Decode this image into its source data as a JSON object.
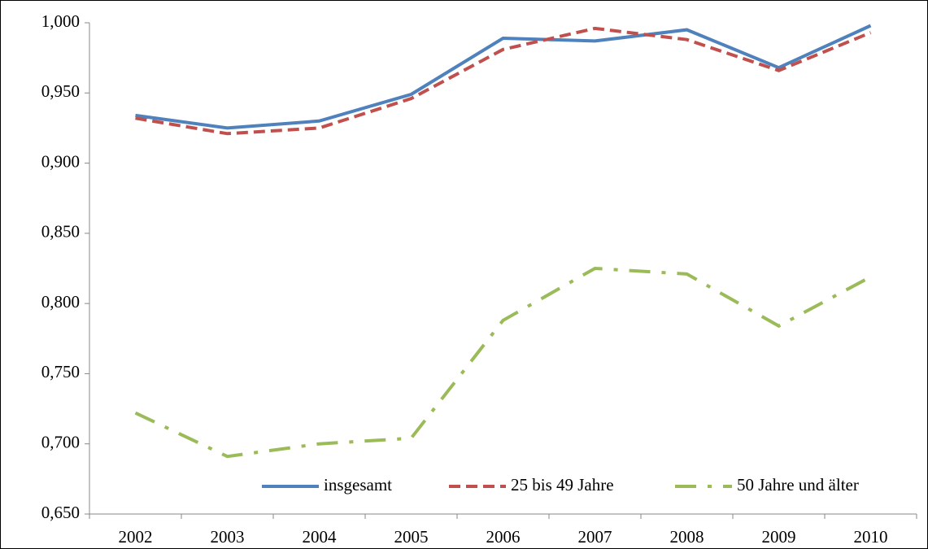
{
  "chart_data": {
    "type": "line",
    "categories": [
      "2002",
      "2003",
      "2004",
      "2005",
      "2006",
      "2007",
      "2008",
      "2009",
      "2010"
    ],
    "series": [
      {
        "name": "insgesamt",
        "color": "#4f81bd",
        "style": "solid",
        "values": [
          0.934,
          0.925,
          0.93,
          0.949,
          0.989,
          0.987,
          0.995,
          0.968,
          0.998
        ]
      },
      {
        "name": "25 bis 49 Jahre",
        "color": "#c0504d",
        "style": "dashed",
        "values": [
          0.932,
          0.921,
          0.925,
          0.946,
          0.981,
          0.996,
          0.988,
          0.966,
          0.993
        ]
      },
      {
        "name": "50 Jahre und älter",
        "color": "#9bbb59",
        "style": "dashdot",
        "values": [
          0.722,
          0.691,
          0.7,
          0.704,
          0.788,
          0.825,
          0.821,
          0.784,
          0.819
        ]
      }
    ],
    "ylim": [
      0.65,
      1.0
    ],
    "yticks": [
      {
        "value": 0.65,
        "label": "0,650"
      },
      {
        "value": 0.7,
        "label": "0,700"
      },
      {
        "value": 0.75,
        "label": "0,750"
      },
      {
        "value": 0.8,
        "label": "0,800"
      },
      {
        "value": 0.85,
        "label": "0,850"
      },
      {
        "value": 0.9,
        "label": "0,900"
      },
      {
        "value": 0.95,
        "label": "0,950"
      },
      {
        "value": 1.0,
        "label": "1,000"
      }
    ],
    "grid": false,
    "legend": "bottom"
  }
}
